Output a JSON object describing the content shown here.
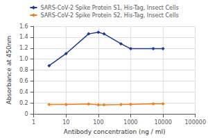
{
  "chart_data": {
    "type": "line",
    "xlabel": "Antibody concentration (ng / ml)",
    "ylabel": "Absorbance at 450nm",
    "log": "x",
    "xlim": [
      1,
      100000
    ],
    "xticks": [
      1,
      10,
      100,
      1000,
      10000,
      100000
    ],
    "ylim": [
      0,
      1.6
    ],
    "yticks": [
      0,
      0.2,
      0.4,
      0.6,
      0.8,
      {
        "value": 1,
        "label": "1.0"
      },
      1.2,
      1.4,
      1.6
    ],
    "grid": true,
    "legend": "top",
    "x": [
      3,
      10,
      50,
      100,
      150,
      500,
      1000,
      5000,
      10000
    ],
    "series": [
      {
        "name": "SARS-CoV-2 Spike Protein S1, His-Tag, Insect Cells",
        "color": "#1a3a8c",
        "marker": "diamond",
        "values": [
          0.88,
          1.1,
          1.46,
          1.49,
          1.46,
          1.28,
          1.19,
          1.19,
          1.19
        ]
      },
      {
        "name": "SARS-CoV-2 Spike Protein S2, His-Tag, Insect Cells",
        "color": "#e8821a",
        "marker": "diamond",
        "values": [
          0.17,
          0.17,
          0.18,
          0.165,
          0.165,
          0.17,
          0.175,
          0.185,
          0.185
        ]
      }
    ]
  }
}
